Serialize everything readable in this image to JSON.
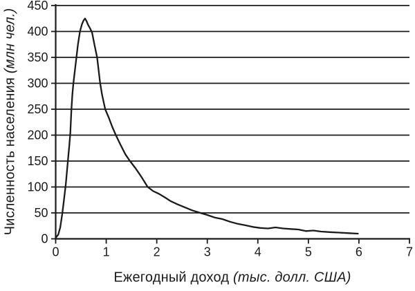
{
  "figure": {
    "background": "#ffffff",
    "ink_color": "#1a1a1a"
  },
  "chart_data": {
    "type": "line",
    "title": "",
    "xlabel": "Ежегодный доход",
    "xlabel_units": "(тыс. долл. США)",
    "ylabel": "Численность населения",
    "ylabel_units": "(млн чел.)",
    "xlim": [
      0,
      7
    ],
    "ylim": [
      0,
      450
    ],
    "x_ticks": [
      0,
      1,
      2,
      3,
      4,
      5,
      6,
      7
    ],
    "y_ticks": [
      0,
      50,
      100,
      150,
      200,
      250,
      300,
      350,
      400,
      450
    ],
    "grid": "horizontal-only",
    "legend_position": "none",
    "line_color": "#1a1a1a",
    "series": [
      {
        "name": "population-by-income",
        "color": "#1a1a1a",
        "points": [
          [
            0.0,
            2
          ],
          [
            0.05,
            8
          ],
          [
            0.09,
            22
          ],
          [
            0.13,
            48
          ],
          [
            0.16,
            72
          ],
          [
            0.2,
            105
          ],
          [
            0.24,
            148
          ],
          [
            0.27,
            180
          ],
          [
            0.29,
            205
          ],
          [
            0.31,
            248
          ],
          [
            0.33,
            278
          ],
          [
            0.35,
            300
          ],
          [
            0.38,
            325
          ],
          [
            0.41,
            350
          ],
          [
            0.44,
            375
          ],
          [
            0.48,
            400
          ],
          [
            0.52,
            414
          ],
          [
            0.55,
            421
          ],
          [
            0.58,
            425
          ],
          [
            0.61,
            420
          ],
          [
            0.64,
            413
          ],
          [
            0.68,
            406
          ],
          [
            0.72,
            398
          ],
          [
            0.77,
            373
          ],
          [
            0.82,
            350
          ],
          [
            0.85,
            325
          ],
          [
            0.88,
            300
          ],
          [
            0.92,
            277
          ],
          [
            0.98,
            250
          ],
          [
            1.05,
            234
          ],
          [
            1.12,
            216
          ],
          [
            1.19,
            200
          ],
          [
            1.28,
            182
          ],
          [
            1.38,
            163
          ],
          [
            1.47,
            150
          ],
          [
            1.58,
            136
          ],
          [
            1.7,
            119
          ],
          [
            1.82,
            100
          ],
          [
            1.93,
            92
          ],
          [
            2.04,
            87
          ],
          [
            2.16,
            80
          ],
          [
            2.27,
            73
          ],
          [
            2.4,
            67
          ],
          [
            2.55,
            61
          ],
          [
            2.7,
            55
          ],
          [
            2.86,
            50
          ],
          [
            3.0,
            46
          ],
          [
            3.15,
            41
          ],
          [
            3.3,
            38
          ],
          [
            3.45,
            33
          ],
          [
            3.6,
            29
          ],
          [
            3.76,
            26
          ],
          [
            3.9,
            23
          ],
          [
            4.05,
            21
          ],
          [
            4.2,
            20
          ],
          [
            4.35,
            22
          ],
          [
            4.5,
            20
          ],
          [
            4.65,
            19
          ],
          [
            4.8,
            18
          ],
          [
            4.95,
            15
          ],
          [
            5.1,
            16
          ],
          [
            5.25,
            14
          ],
          [
            5.42,
            13
          ],
          [
            5.6,
            12
          ],
          [
            5.8,
            11
          ],
          [
            5.98,
            10
          ]
        ]
      }
    ]
  }
}
